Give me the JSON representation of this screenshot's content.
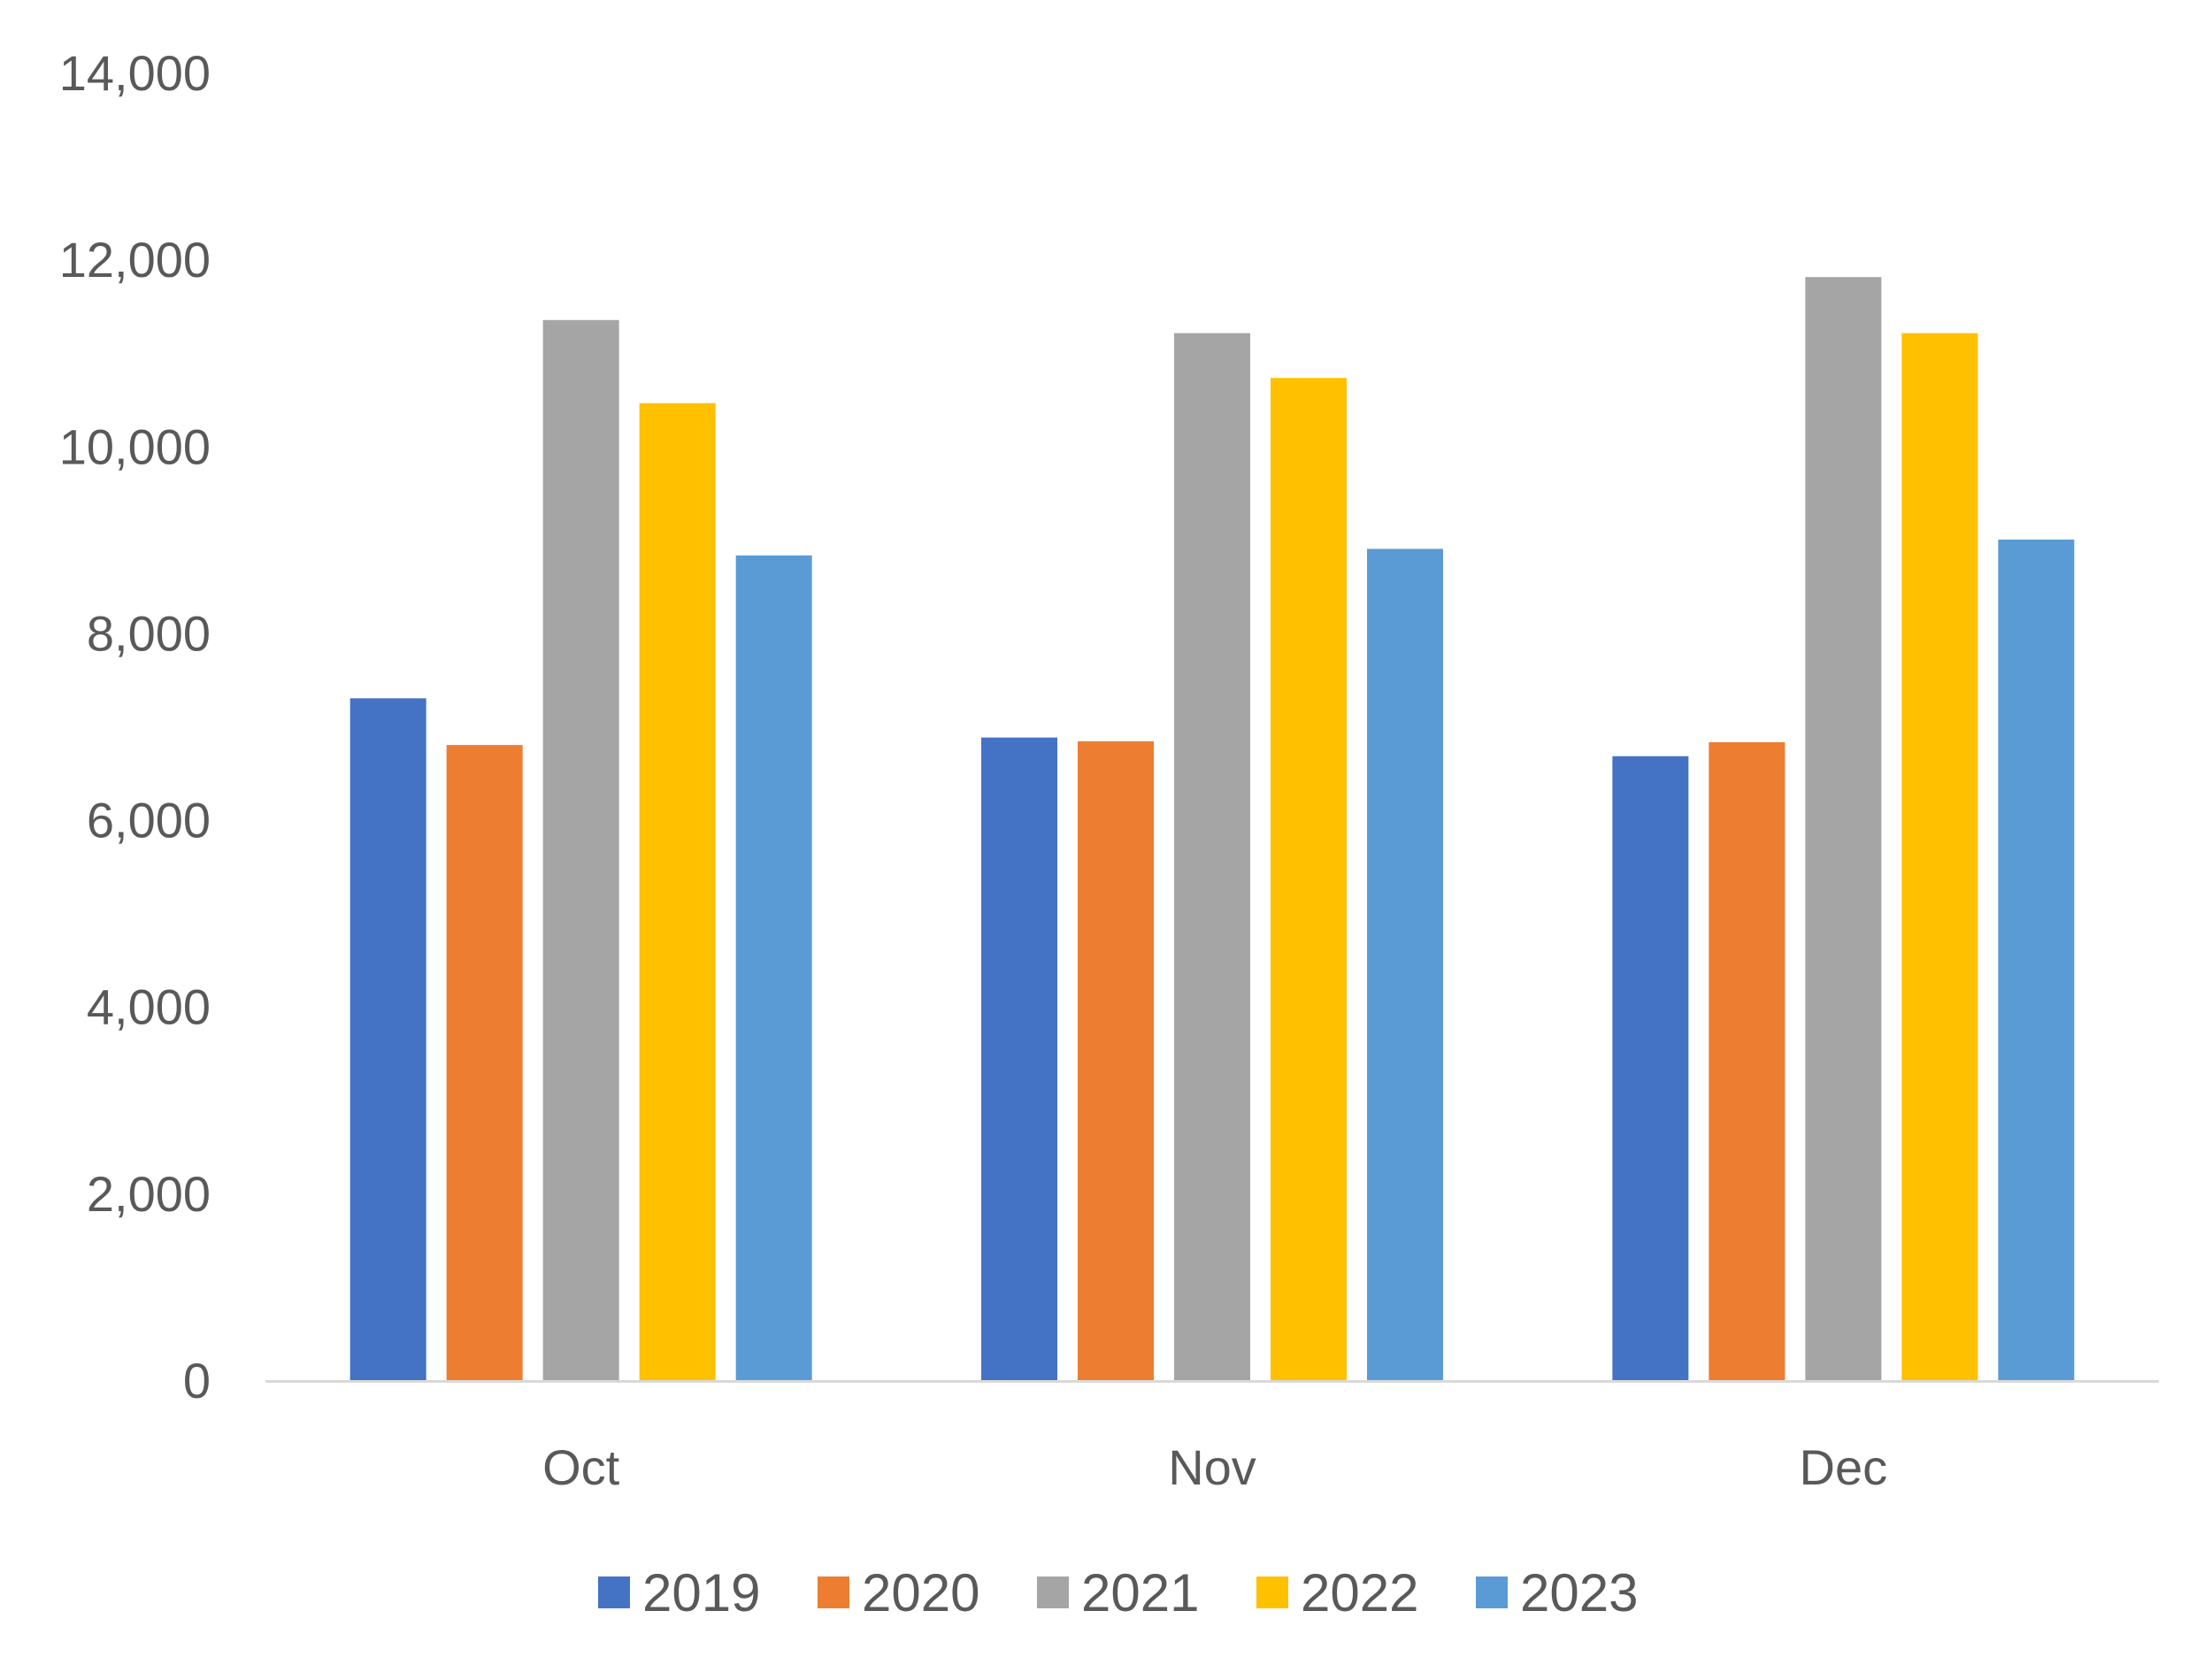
{
  "chart_data": {
    "type": "bar",
    "title": "",
    "xlabel": "",
    "ylabel": "",
    "categories": [
      "Oct",
      "Nov",
      "Dec"
    ],
    "ylim": [
      0,
      14000
    ],
    "yticks": [
      0,
      2000,
      4000,
      6000,
      8000,
      10000,
      12000,
      14000
    ],
    "ytick_labels": [
      "0",
      "2,000",
      "4,000",
      "6,000",
      "8,000",
      "10,000",
      "12,000",
      "14,000"
    ],
    "grid": false,
    "legend_position": "bottom",
    "series": [
      {
        "name": "2019",
        "color": "#4472C4",
        "values": [
          7300,
          6880,
          6680
        ]
      },
      {
        "name": "2020",
        "color": "#ED7D31",
        "values": [
          6800,
          6840,
          6830
        ]
      },
      {
        "name": "2021",
        "color": "#A5A5A5",
        "values": [
          11350,
          11210,
          11810
        ]
      },
      {
        "name": "2022",
        "color": "#FFC000",
        "values": [
          10460,
          10730,
          11210
        ]
      },
      {
        "name": "2023",
        "color": "#5B9BD5",
        "values": [
          8830,
          8900,
          9000
        ]
      }
    ],
    "axis_color": "#D9D9D9"
  }
}
